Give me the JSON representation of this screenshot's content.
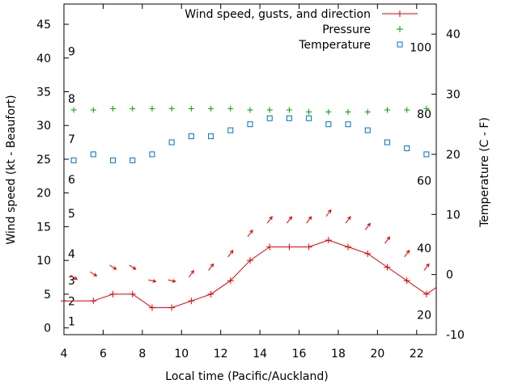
{
  "chart_data": {
    "type": "line",
    "xlabel": "Local time (Pacific/Auckland)",
    "ylabel_left": "Wind speed (kt - Beaufort)",
    "ylabel_right": "Temperature (C - F)",
    "xlim": [
      4,
      23
    ],
    "ylim_left": [
      -1,
      48
    ],
    "ylim_right": [
      -10,
      45
    ],
    "x_ticks": [
      4,
      6,
      8,
      10,
      12,
      14,
      16,
      18,
      20,
      22
    ],
    "y_ticks_left": [
      0,
      5,
      10,
      15,
      20,
      25,
      30,
      35,
      40,
      45
    ],
    "y_ticks_right": [
      -10,
      0,
      10,
      20,
      30,
      40
    ],
    "legend_position": "top-right",
    "colors": {
      "wind": "#e00000",
      "pressure": "#00a000",
      "temperature": "#0070c0",
      "axes": "#000000"
    },
    "beaufort_labels": [
      {
        "label": "1",
        "y": 1
      },
      {
        "label": "2",
        "y": 4
      },
      {
        "label": "3",
        "y": 7
      },
      {
        "label": "4",
        "y": 11
      },
      {
        "label": "5",
        "y": 17
      },
      {
        "label": "6",
        "y": 22
      },
      {
        "label": "7",
        "y": 28
      },
      {
        "label": "8",
        "y": 34
      },
      {
        "label": "9",
        "y": 41
      }
    ],
    "fahrenheit_labels": [
      {
        "label": "20",
        "y": -6.7
      },
      {
        "label": "40",
        "y": 4.4
      },
      {
        "label": "60",
        "y": 15.6
      },
      {
        "label": "80",
        "y": 26.7
      },
      {
        "label": "100",
        "y": 37.8
      }
    ],
    "series": [
      {
        "name": "Wind speed, gusts, and direction",
        "axis": "left",
        "x": [
          4,
          5.5,
          6.5,
          7.5,
          8.5,
          9.5,
          10.5,
          11.5,
          12.5,
          13.5,
          14.5,
          15.5,
          16.5,
          17.5,
          18.5,
          19.5,
          20.5,
          21.5,
          22.5,
          23
        ],
        "y": [
          4,
          4,
          5,
          5,
          3,
          3,
          4,
          5,
          7,
          10,
          12,
          12,
          12,
          13,
          12,
          11,
          9,
          7,
          5,
          6
        ]
      },
      {
        "name": "Pressure",
        "axis": "left",
        "x": [
          4.5,
          5.5,
          6.5,
          7.5,
          8.5,
          9.5,
          10.5,
          11.5,
          12.5,
          13.5,
          14.5,
          15.5,
          16.5,
          17.5,
          18.5,
          19.5,
          20.5,
          21.5,
          22.5
        ],
        "y": [
          32.3,
          32.3,
          32.5,
          32.5,
          32.5,
          32.5,
          32.5,
          32.5,
          32.5,
          32.3,
          32.3,
          32.3,
          32.0,
          32.0,
          32.0,
          32.0,
          32.3,
          32.3,
          32.5
        ]
      },
      {
        "name": "Temperature",
        "axis": "right",
        "x": [
          4.5,
          5.5,
          6.5,
          7.5,
          8.5,
          9.5,
          10.5,
          11.5,
          12.5,
          13.5,
          14.5,
          15.5,
          16.5,
          17.5,
          18.5,
          19.5,
          20.5,
          21.5,
          22.5
        ],
        "y": [
          19,
          20,
          19,
          19,
          20,
          22,
          23,
          23,
          24,
          25,
          26,
          26,
          26,
          25,
          25,
          24,
          22,
          21,
          20
        ]
      }
    ],
    "wind_arrows": [
      {
        "x": 4.5,
        "y": 7.5,
        "dir": "se"
      },
      {
        "x": 5.5,
        "y": 8,
        "dir": "se"
      },
      {
        "x": 6.5,
        "y": 9,
        "dir": "se"
      },
      {
        "x": 7.5,
        "y": 9,
        "dir": "se"
      },
      {
        "x": 8.5,
        "y": 7,
        "dir": "e"
      },
      {
        "x": 9.5,
        "y": 7,
        "dir": "e"
      },
      {
        "x": 10.5,
        "y": 8,
        "dir": "ne"
      },
      {
        "x": 11.5,
        "y": 9,
        "dir": "ne"
      },
      {
        "x": 12.5,
        "y": 11,
        "dir": "ne"
      },
      {
        "x": 13.5,
        "y": 14,
        "dir": "ne"
      },
      {
        "x": 14.5,
        "y": 16,
        "dir": "ne"
      },
      {
        "x": 15.5,
        "y": 16,
        "dir": "ne"
      },
      {
        "x": 16.5,
        "y": 16,
        "dir": "ne"
      },
      {
        "x": 17.5,
        "y": 17,
        "dir": "ne"
      },
      {
        "x": 18.5,
        "y": 16,
        "dir": "ne"
      },
      {
        "x": 19.5,
        "y": 15,
        "dir": "ne"
      },
      {
        "x": 20.5,
        "y": 13,
        "dir": "ne"
      },
      {
        "x": 21.5,
        "y": 11,
        "dir": "ne"
      },
      {
        "x": 22.5,
        "y": 9,
        "dir": "ne"
      }
    ]
  }
}
